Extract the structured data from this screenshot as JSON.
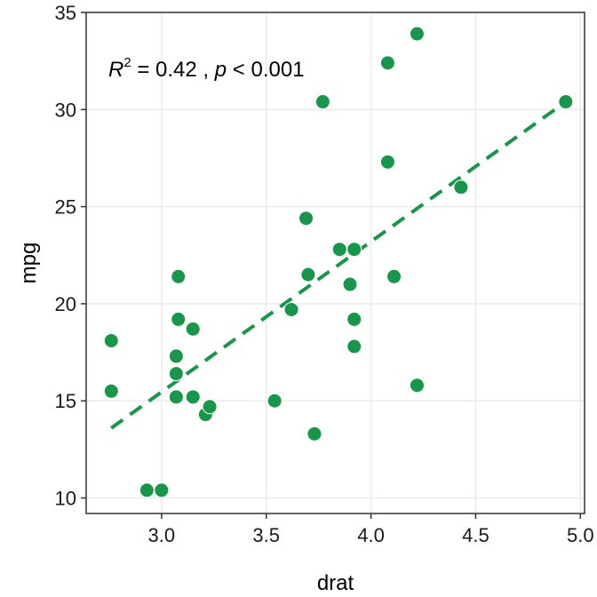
{
  "chart_data": {
    "type": "scatter",
    "xlabel": "drat",
    "ylabel": "mpg",
    "xlim": [
      2.64,
      5.02
    ],
    "ylim": [
      9.2,
      35
    ],
    "xticks": [
      3.0,
      3.5,
      4.0,
      4.5,
      5.0
    ],
    "xtick_labels": [
      "3.0",
      "3.5",
      "4.0",
      "4.5",
      "5.0"
    ],
    "yticks": [
      10,
      15,
      20,
      25,
      30,
      35
    ],
    "ytick_labels": [
      "10",
      "15",
      "20",
      "25",
      "30",
      "35"
    ],
    "grid": true,
    "point_color": "#17974A",
    "line_color": "#17974A",
    "annotation": {
      "r_symbol": "R",
      "r_exponent": "2",
      "r_text": " = 0.42 , ",
      "p_symbol": "p",
      "p_text": " < 0.001"
    },
    "points": [
      {
        "x": 2.76,
        "y": 18.1
      },
      {
        "x": 2.76,
        "y": 15.5
      },
      {
        "x": 2.93,
        "y": 10.4
      },
      {
        "x": 3.0,
        "y": 10.4
      },
      {
        "x": 3.07,
        "y": 17.3
      },
      {
        "x": 3.07,
        "y": 16.4
      },
      {
        "x": 3.07,
        "y": 15.2
      },
      {
        "x": 3.08,
        "y": 21.4
      },
      {
        "x": 3.08,
        "y": 19.2
      },
      {
        "x": 3.15,
        "y": 18.7
      },
      {
        "x": 3.15,
        "y": 15.2
      },
      {
        "x": 3.21,
        "y": 14.3
      },
      {
        "x": 3.23,
        "y": 14.7
      },
      {
        "x": 3.54,
        "y": 15.0
      },
      {
        "x": 3.62,
        "y": 19.7
      },
      {
        "x": 3.69,
        "y": 24.4
      },
      {
        "x": 3.7,
        "y": 21.5
      },
      {
        "x": 3.73,
        "y": 13.3
      },
      {
        "x": 3.77,
        "y": 30.4
      },
      {
        "x": 3.85,
        "y": 22.8
      },
      {
        "x": 3.9,
        "y": 21.0
      },
      {
        "x": 3.92,
        "y": 22.8
      },
      {
        "x": 3.92,
        "y": 19.2
      },
      {
        "x": 3.92,
        "y": 17.8
      },
      {
        "x": 4.08,
        "y": 32.4
      },
      {
        "x": 4.08,
        "y": 27.3
      },
      {
        "x": 4.11,
        "y": 21.4
      },
      {
        "x": 4.22,
        "y": 33.9
      },
      {
        "x": 4.22,
        "y": 15.8
      },
      {
        "x": 4.43,
        "y": 26.0
      },
      {
        "x": 4.93,
        "y": 30.4
      }
    ],
    "fit_line": {
      "x": [
        2.76,
        4.93
      ],
      "y": [
        13.6,
        30.4
      ]
    }
  }
}
